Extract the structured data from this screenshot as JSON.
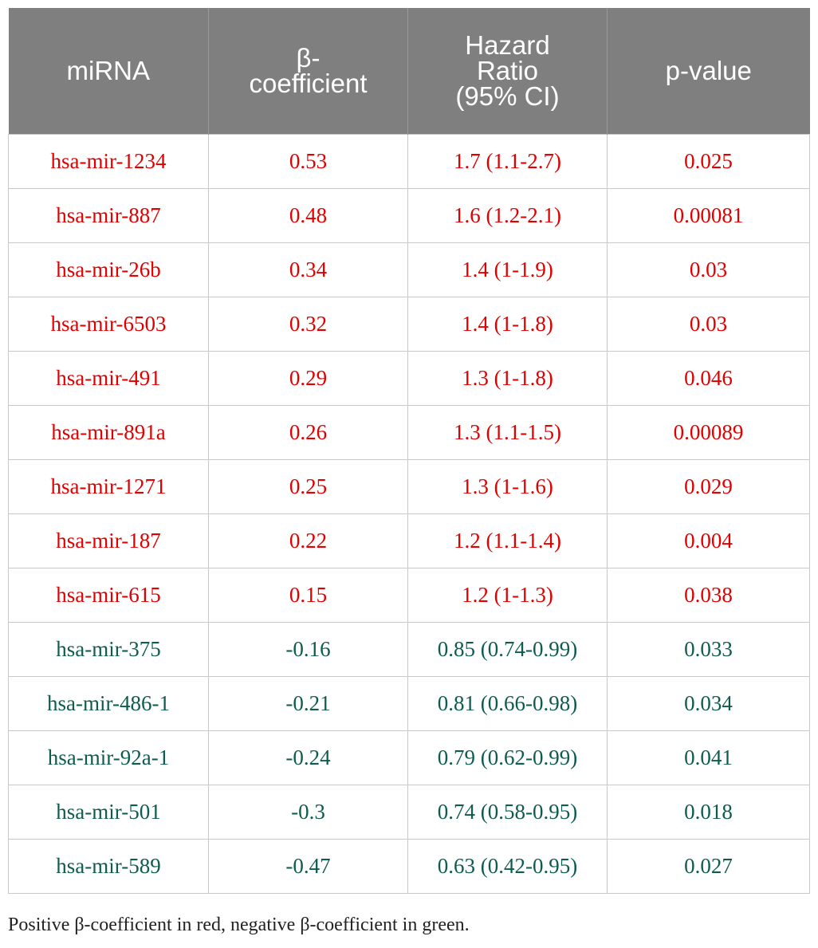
{
  "colors": {
    "header_bg": "#7f7f7f",
    "positive": "#e00000",
    "negative": "#0d5c4e"
  },
  "table": {
    "headers": [
      [
        "miRNA"
      ],
      [
        "β-",
        "coefficient"
      ],
      [
        "Hazard",
        "Ratio",
        "(95% CI)"
      ],
      [
        "p-value"
      ]
    ],
    "rows": [
      {
        "sign": "positive",
        "cells": [
          "hsa-mir-1234",
          "0.53",
          "1.7 (1.1-2.7)",
          "0.025"
        ]
      },
      {
        "sign": "positive",
        "cells": [
          "hsa-mir-887",
          "0.48",
          "1.6 (1.2-2.1)",
          "0.00081"
        ]
      },
      {
        "sign": "positive",
        "cells": [
          "hsa-mir-26b",
          "0.34",
          "1.4 (1-1.9)",
          "0.03"
        ]
      },
      {
        "sign": "positive",
        "cells": [
          "hsa-mir-6503",
          "0.32",
          "1.4 (1-1.8)",
          "0.03"
        ]
      },
      {
        "sign": "positive",
        "cells": [
          "hsa-mir-491",
          "0.29",
          "1.3 (1-1.8)",
          "0.046"
        ]
      },
      {
        "sign": "positive",
        "cells": [
          "hsa-mir-891a",
          "0.26",
          "1.3 (1.1-1.5)",
          "0.00089"
        ]
      },
      {
        "sign": "positive",
        "cells": [
          "hsa-mir-1271",
          "0.25",
          "1.3 (1-1.6)",
          "0.029"
        ]
      },
      {
        "sign": "positive",
        "cells": [
          "hsa-mir-187",
          "0.22",
          "1.2 (1.1-1.4)",
          "0.004"
        ]
      },
      {
        "sign": "positive",
        "cells": [
          "hsa-mir-615",
          "0.15",
          "1.2 (1-1.3)",
          "0.038"
        ]
      },
      {
        "sign": "negative",
        "cells": [
          "hsa-mir-375",
          "-0.16",
          "0.85 (0.74-0.99)",
          "0.033"
        ]
      },
      {
        "sign": "negative",
        "cells": [
          "hsa-mir-486-1",
          "-0.21",
          "0.81 (0.66-0.98)",
          "0.034"
        ]
      },
      {
        "sign": "negative",
        "cells": [
          "hsa-mir-92a-1",
          "-0.24",
          "0.79 (0.62-0.99)",
          "0.041"
        ]
      },
      {
        "sign": "negative",
        "cells": [
          "hsa-mir-501",
          "-0.3",
          "0.74 (0.58-0.95)",
          "0.018"
        ]
      },
      {
        "sign": "negative",
        "cells": [
          "hsa-mir-589",
          "-0.47",
          "0.63 (0.42-0.95)",
          "0.027"
        ]
      }
    ]
  },
  "footnote": "Positive β-coefficient in red, negative β-coefficient in green."
}
